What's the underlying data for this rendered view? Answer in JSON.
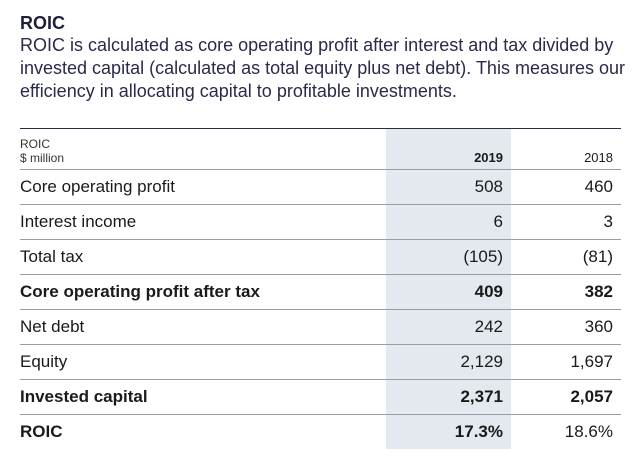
{
  "section": {
    "title": "ROIC",
    "description": "ROIC is calculated as core operating profit after interest and tax divided by invested capital (calculated as total equity plus net debt). This measures our efficiency in allocating capital to profitable investments."
  },
  "table": {
    "header": {
      "label_line1": "ROIC",
      "label_line2": "$ million",
      "col_2019": "2019",
      "col_2018": "2018"
    },
    "rows": [
      {
        "label": "Core operating profit",
        "v2019": "508",
        "v2018": "460",
        "bold": false
      },
      {
        "label": "Interest income",
        "v2019": "6",
        "v2018": "3",
        "bold": false
      },
      {
        "label": "Total tax",
        "v2019": "(105)",
        "v2018": "(81)",
        "bold": false
      },
      {
        "label": "Core operating profit after tax",
        "v2019": "409",
        "v2018": "382",
        "bold": true
      },
      {
        "label": "Net debt",
        "v2019": "242",
        "v2018": "360",
        "bold": false
      },
      {
        "label": "Equity",
        "v2019": "2,129",
        "v2018": "1,697",
        "bold": false
      },
      {
        "label": "Invested capital",
        "v2019": "2,371",
        "v2018": "2,057",
        "bold": true
      },
      {
        "label": "ROIC",
        "v2019": "17.3%",
        "v2018": "18.6%",
        "bold": true
      }
    ]
  }
}
